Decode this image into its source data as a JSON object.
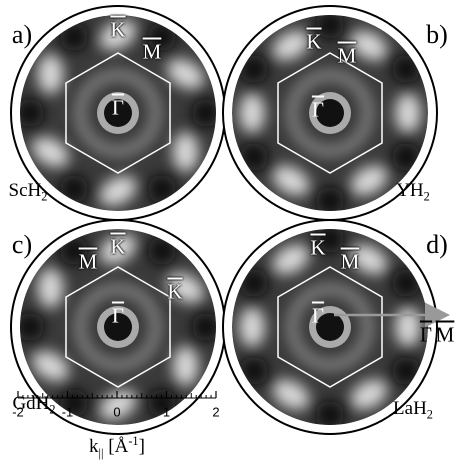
{
  "panels": [
    {
      "letter": "a)",
      "material": {
        "base": "ScH",
        "sub": "2"
      },
      "symbols": [
        "K",
        "M",
        "Γ"
      ]
    },
    {
      "letter": "b)",
      "material": {
        "base": "YH",
        "sub": "2"
      },
      "symbols": [
        "K",
        "M",
        "Γ"
      ]
    },
    {
      "letter": "c)",
      "material": {
        "base": "GdH",
        "sub": "2"
      },
      "symbols": [
        "M",
        "K",
        "K",
        "Γ"
      ]
    },
    {
      "letter": "d)",
      "material": {
        "base": "LaH",
        "sub": "2"
      },
      "symbols": [
        "K",
        "M",
        "Γ"
      ],
      "arrow_label": [
        "Γ",
        "M"
      ]
    }
  ],
  "scale": {
    "ticks": [
      -2,
      -1,
      0,
      1,
      2
    ],
    "label": {
      "base": "k",
      "sub": "||",
      "unit": "[Å",
      "sup": "-1",
      "close": "]"
    }
  }
}
